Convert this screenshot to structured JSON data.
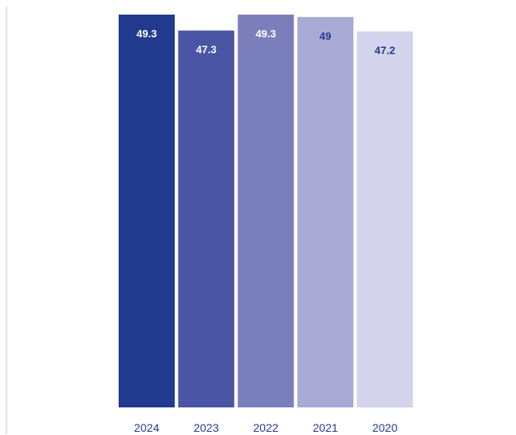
{
  "chart_data": {
    "type": "bar",
    "title": "",
    "xlabel": "",
    "ylabel": "",
    "categories": [
      "2024",
      "2023",
      "2022",
      "2021",
      "2020"
    ],
    "values": [
      49.3,
      47.3,
      49.3,
      49,
      47.2
    ],
    "value_labels": [
      "49.3",
      "47.3",
      "49.3",
      "49",
      "47.2"
    ],
    "ylim": [
      0,
      50
    ],
    "grid": false,
    "legend": "none",
    "bar_colors": [
      "#223a8e",
      "#4a55a5",
      "#7a7fbb",
      "#a9a9d6",
      "#d4d4ec"
    ],
    "label_colors": [
      "#ffffff",
      "#ffffff",
      "#ffffff",
      "#223a8e",
      "#223a8e"
    ],
    "label_position": "inside-top",
    "axis_color": "#c8c8c8",
    "tick_color": "#2a3a8f"
  }
}
